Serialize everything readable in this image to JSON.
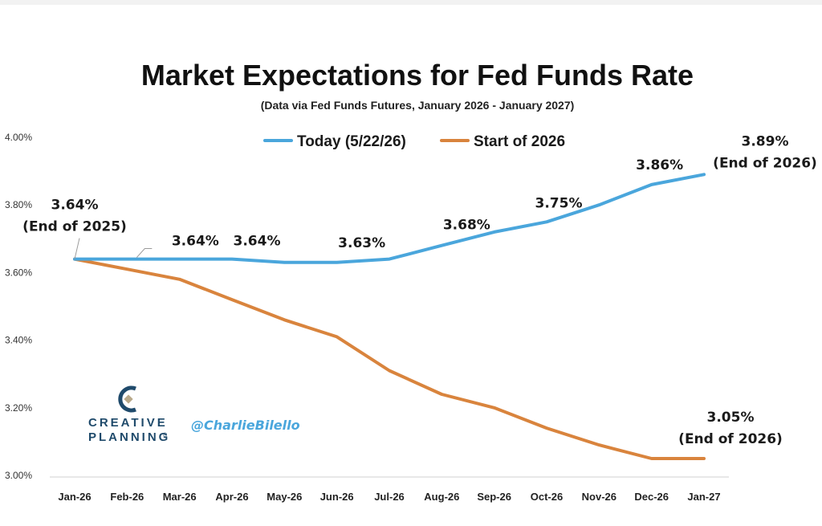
{
  "chart_data": {
    "type": "line",
    "title": "Market Expectations for Fed Funds Rate",
    "subtitle": "(Data via Fed Funds Futures, January 2026 - January 2027)",
    "categories": [
      "Jan-26",
      "Feb-26",
      "Mar-26",
      "Apr-26",
      "May-26",
      "Jun-26",
      "Jul-26",
      "Aug-26",
      "Sep-26",
      "Oct-26",
      "Nov-26",
      "Dec-26",
      "Jan-27"
    ],
    "series": [
      {
        "name": "Today (5/22/26)",
        "color": "#4aa6dc",
        "values": [
          3.64,
          3.64,
          3.64,
          3.64,
          3.63,
          3.63,
          3.64,
          3.68,
          3.72,
          3.75,
          3.8,
          3.86,
          3.89
        ]
      },
      {
        "name": "Start of 2026",
        "color": "#d9843d",
        "values": [
          3.64,
          3.61,
          3.58,
          3.52,
          3.46,
          3.41,
          3.31,
          3.24,
          3.2,
          3.14,
          3.09,
          3.05,
          3.05
        ]
      }
    ],
    "y_ticks": [
      "3.00%",
      "3.20%",
      "3.40%",
      "3.60%",
      "3.80%",
      "4.00%"
    ],
    "ylim": [
      3.0,
      4.0
    ],
    "grid": false,
    "legend_position": "top-center",
    "annotations": [
      {
        "series": 0,
        "index": 0,
        "lines": [
          "3.64%",
          "(End of 2025)"
        ]
      },
      {
        "series": 0,
        "index": 1,
        "lines": [
          "3.64%"
        ]
      },
      {
        "series": 0,
        "index": 3,
        "lines": [
          "3.64%"
        ]
      },
      {
        "series": 0,
        "index": 5,
        "lines": [
          "3.63%"
        ]
      },
      {
        "series": 0,
        "index": 7,
        "lines": [
          "3.68%"
        ]
      },
      {
        "series": 0,
        "index": 9,
        "lines": [
          "3.75%"
        ]
      },
      {
        "series": 0,
        "index": 11,
        "lines": [
          "3.86%"
        ]
      },
      {
        "series": 0,
        "index": 12,
        "lines": [
          "3.89%",
          "(End of 2026)"
        ]
      },
      {
        "series": 1,
        "index": 12,
        "lines": [
          "3.05%",
          "(End of 2026)"
        ]
      }
    ]
  },
  "branding": {
    "logo_line1": "CREATIVE",
    "logo_line2": "PLANNING",
    "logo_mark": "registered",
    "handle": "@CharlieBilello",
    "logo_color": "#1f4a6b",
    "handle_color": "#4aa6dc"
  }
}
